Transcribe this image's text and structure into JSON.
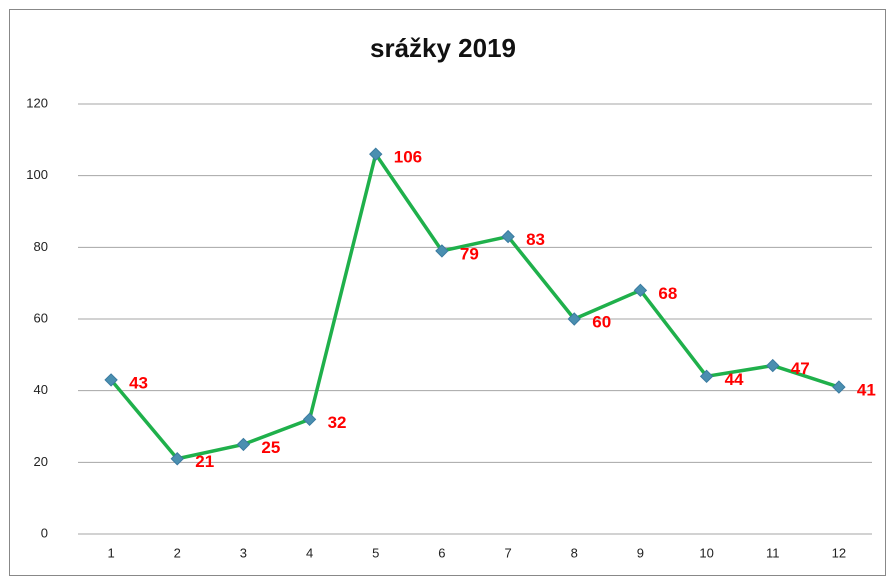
{
  "chart_data": {
    "type": "line",
    "title": "srážky 2019",
    "categories": [
      1,
      2,
      3,
      4,
      5,
      6,
      7,
      8,
      9,
      10,
      11,
      12
    ],
    "values": [
      43,
      21,
      25,
      32,
      106,
      79,
      83,
      60,
      68,
      44,
      47,
      41
    ],
    "color": "#1fb04b",
    "marker_color": "#4a8fb0",
    "ylim": [
      0,
      120
    ],
    "yticks": [
      0,
      20,
      40,
      60,
      80,
      100,
      120
    ],
    "grid": true
  }
}
